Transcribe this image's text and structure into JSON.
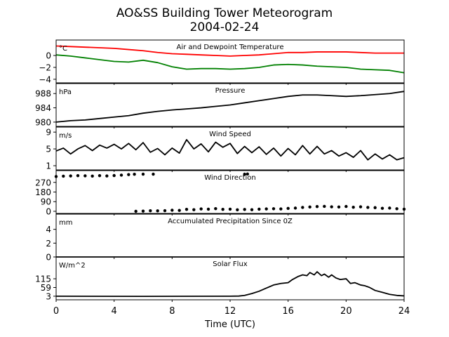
{
  "figure": {
    "title_line1": "AO&SS Building Tower Meteorogram",
    "title_line2": "2004-02-24",
    "xlabel": "Time (UTC)",
    "x_ticks": [
      "0",
      "4",
      "8",
      "12",
      "16",
      "20",
      "24"
    ]
  },
  "chart_data": [
    {
      "type": "line",
      "title": "Air and Dewpoint Temperature",
      "unit": "°C",
      "xlim": [
        0,
        24
      ],
      "ylim": [
        -4.6,
        2.6
      ],
      "y_ticks": [
        0,
        -2,
        -4
      ],
      "y_tick_labels": [
        "0",
        "−2",
        "−4"
      ],
      "series": [
        {
          "name": "Air",
          "color": "#ff0000",
          "x": [
            0,
            1,
            2,
            3,
            4,
            5,
            6,
            7,
            8,
            9,
            10,
            11,
            12,
            13,
            14,
            15,
            16,
            17,
            18,
            19,
            20,
            21,
            22,
            23,
            24
          ],
          "y": [
            1.6,
            1.5,
            1.4,
            1.3,
            1.2,
            1.0,
            0.8,
            0.5,
            0.3,
            0.2,
            0.1,
            0.0,
            -0.1,
            0.0,
            0.1,
            0.3,
            0.5,
            0.5,
            0.6,
            0.6,
            0.6,
            0.5,
            0.4,
            0.4,
            0.4
          ]
        },
        {
          "name": "Dewpoint",
          "color": "#008000",
          "x": [
            0,
            1,
            2,
            3,
            4,
            5,
            6,
            7,
            8,
            9,
            10,
            11,
            12,
            13,
            14,
            15,
            16,
            17,
            18,
            19,
            20,
            21,
            22,
            23,
            24
          ],
          "y": [
            0.1,
            -0.1,
            -0.4,
            -0.7,
            -1.0,
            -1.1,
            -0.8,
            -1.2,
            -1.9,
            -2.3,
            -2.2,
            -2.2,
            -2.3,
            -2.2,
            -2.0,
            -1.6,
            -1.5,
            -1.6,
            -1.8,
            -1.9,
            -2.0,
            -2.3,
            -2.4,
            -2.5,
            -2.9
          ]
        }
      ]
    },
    {
      "type": "line",
      "title": "Pressure",
      "unit": "hPa",
      "xlim": [
        0,
        24
      ],
      "ylim": [
        978.8,
        990.8
      ],
      "y_ticks": [
        980,
        984,
        988
      ],
      "y_tick_labels": [
        "980",
        "984",
        "988"
      ],
      "series": [
        {
          "name": "",
          "color": "#000000",
          "x": [
            0,
            1,
            2,
            3,
            4,
            5,
            6,
            7,
            8,
            9,
            10,
            11,
            12,
            13,
            14,
            15,
            16,
            17,
            18,
            19,
            20,
            21,
            22,
            23,
            24
          ],
          "y": [
            980.0,
            980.4,
            980.6,
            981.0,
            981.4,
            981.8,
            982.5,
            983.0,
            983.4,
            983.7,
            984.0,
            984.4,
            984.8,
            985.4,
            986.0,
            986.6,
            987.2,
            987.6,
            987.6,
            987.4,
            987.2,
            987.4,
            987.7,
            988.0,
            988.6
          ]
        }
      ]
    },
    {
      "type": "line",
      "title": "Wind Speed",
      "unit": "m/s",
      "xlim": [
        0,
        24
      ],
      "ylim": [
        0,
        10.2
      ],
      "y_ticks": [
        1,
        5,
        9
      ],
      "y_tick_labels": [
        "1",
        "5",
        "9"
      ],
      "series": [
        {
          "name": "",
          "color": "#000000",
          "x": [
            0,
            0.5,
            1,
            1.5,
            2,
            2.5,
            3,
            3.5,
            4,
            4.5,
            5,
            5.5,
            6,
            6.5,
            7,
            7.5,
            8,
            8.5,
            9,
            9.5,
            10,
            10.5,
            11,
            11.5,
            12,
            12.5,
            13,
            13.5,
            14,
            14.5,
            15,
            15.5,
            16,
            16.5,
            17,
            17.5,
            18,
            18.5,
            19,
            19.5,
            20,
            20.5,
            21,
            21.5,
            22,
            22.5,
            23,
            23.5,
            24
          ],
          "y": [
            4.5,
            5.2,
            3.8,
            5.0,
            5.8,
            4.6,
            5.9,
            5.2,
            6.1,
            5.0,
            6.3,
            4.8,
            6.5,
            4.2,
            5.1,
            3.6,
            5.2,
            4.0,
            7.2,
            5.0,
            6.2,
            4.3,
            6.6,
            5.4,
            6.3,
            3.9,
            5.6,
            4.1,
            5.5,
            3.7,
            5.2,
            3.3,
            5.1,
            3.6,
            5.8,
            3.8,
            5.6,
            3.8,
            4.6,
            3.3,
            4.1,
            3.0,
            4.6,
            2.4,
            3.8,
            2.6,
            3.6,
            2.4,
            2.9
          ]
        }
      ]
    },
    {
      "type": "scatter",
      "title": "Wind Direction",
      "unit": "",
      "xlim": [
        0,
        24
      ],
      "ylim": [
        -20,
        380
      ],
      "y_ticks": [
        0,
        90,
        180,
        270
      ],
      "y_tick_labels": [
        "0",
        "90",
        "180",
        "270"
      ],
      "series": [
        {
          "name": "",
          "color": "#000000",
          "x": [
            0,
            0.5,
            1,
            1.5,
            2,
            2.5,
            3,
            3.5,
            4,
            4.5,
            5,
            5.4,
            6.0,
            6.7,
            13.0,
            13.2
          ],
          "y": [
            325,
            328,
            330,
            333,
            331,
            329,
            333,
            330,
            334,
            338,
            343,
            346,
            347,
            347,
            347,
            348
          ]
        },
        {
          "name": "",
          "color": "#000000",
          "x": [
            5.5,
            6,
            6.5,
            7,
            7.5,
            8,
            8.5,
            9,
            9.5,
            10,
            10.5,
            11,
            11.5,
            12,
            12.5,
            13,
            13.5,
            14,
            14.5,
            15,
            15.5,
            16,
            16.5,
            17,
            17.5,
            18,
            18.5,
            19,
            19.5,
            20,
            20.5,
            21,
            21.5,
            22,
            22.5,
            23,
            23.5,
            24
          ],
          "y": [
            0,
            2,
            5,
            4,
            6,
            10,
            8,
            18,
            15,
            22,
            20,
            25,
            18,
            20,
            14,
            17,
            15,
            20,
            22,
            24,
            22,
            27,
            30,
            36,
            40,
            44,
            46,
            42,
            40,
            45,
            38,
            42,
            36,
            34,
            28,
            30,
            24,
            20
          ]
        }
      ]
    },
    {
      "type": "line",
      "title": "Accumulated Precipitation Since 0Z",
      "unit": "mm",
      "xlim": [
        0,
        24
      ],
      "ylim": [
        0,
        6.2
      ],
      "y_ticks": [
        0,
        2,
        4
      ],
      "y_tick_labels": [
        "0",
        "2",
        "4"
      ],
      "series": [
        {
          "name": "",
          "color": "#000000",
          "x": [
            0,
            24
          ],
          "y": [
            0,
            0
          ]
        }
      ]
    },
    {
      "type": "line",
      "title": "Solar Flux",
      "unit": "W/m^2",
      "xlim": [
        0,
        24
      ],
      "ylim": [
        -20,
        255
      ],
      "y_ticks": [
        3,
        59,
        115
      ],
      "y_tick_labels": [
        "3",
        "59",
        "115"
      ],
      "series": [
        {
          "name": "",
          "color": "#000000",
          "x": [
            0,
            6,
            12,
            12.6,
            13,
            13.5,
            14,
            14.5,
            15,
            15.5,
            16,
            16.3,
            16.7,
            17,
            17.3,
            17.5,
            17.8,
            18,
            18.3,
            18.5,
            18.8,
            19,
            19.3,
            19.6,
            20,
            20.3,
            20.6,
            21,
            21.3,
            21.6,
            22,
            22.5,
            23,
            23.5,
            24
          ],
          "y": [
            3,
            2,
            3,
            4,
            8,
            20,
            35,
            55,
            75,
            85,
            90,
            110,
            130,
            140,
            135,
            155,
            140,
            160,
            135,
            145,
            125,
            140,
            120,
            110,
            115,
            85,
            90,
            75,
            70,
            60,
            40,
            28,
            15,
            8,
            5
          ]
        }
      ]
    }
  ]
}
